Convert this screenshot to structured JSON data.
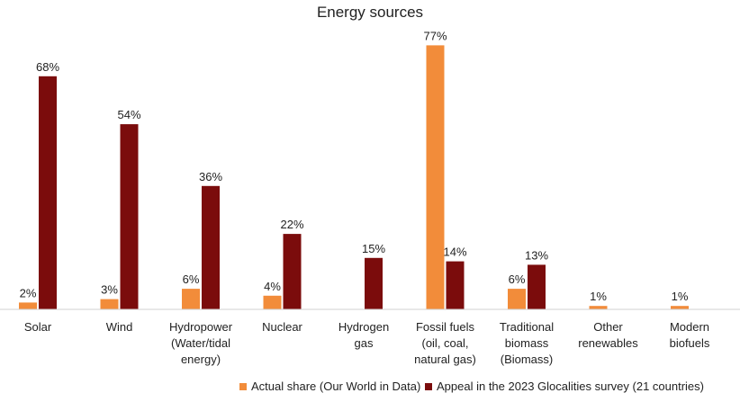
{
  "chart_data": {
    "type": "bar",
    "title": "Energy sources",
    "categories": [
      [
        "Solar"
      ],
      [
        "Wind"
      ],
      [
        "Hydropower",
        "(Water/tidal",
        "energy)"
      ],
      [
        "Nuclear"
      ],
      [
        "Hydrogen",
        "gas"
      ],
      [
        "Fossil fuels",
        "(oil, coal,",
        "natural gas)"
      ],
      [
        "Traditional",
        "biomass",
        "(Biomass)"
      ],
      [
        "Other",
        "renewables"
      ],
      [
        "Modern",
        "biofuels"
      ]
    ],
    "series": [
      {
        "name": "Actual share (Our World in Data)",
        "color": "#F28C3A",
        "values": [
          2,
          3,
          6,
          4,
          null,
          77,
          6,
          1,
          1
        ],
        "labels": [
          "2%",
          "3%",
          "6%",
          "4%",
          "",
          "77%",
          "6%",
          "1%",
          "1%"
        ]
      },
      {
        "name": "Appeal in the 2023 Glocalities survey (21 countries)",
        "color": "#7B0C0C",
        "values": [
          68,
          54,
          36,
          22,
          15,
          14,
          13,
          null,
          null
        ],
        "labels": [
          "68%",
          "54%",
          "36%",
          "22%",
          "15%",
          "14%",
          "13%",
          "",
          ""
        ]
      }
    ],
    "ylim": [
      0,
      80
    ],
    "xlabel": "",
    "ylabel": "",
    "grid": false,
    "legend_position": "bottom"
  }
}
